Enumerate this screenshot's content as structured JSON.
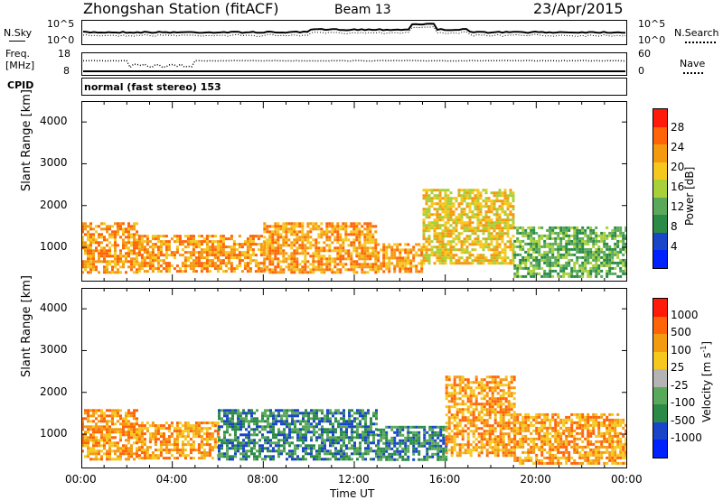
{
  "header": {
    "station": "Zhongshan Station (fitACF)",
    "beam": "Beam 13",
    "date": "23/Apr/2015"
  },
  "noise_panel": {
    "left_label": "N.Sky",
    "left_ticks": [
      "10^5",
      "10^0"
    ],
    "right_ticks": [
      "10^5",
      "10^0"
    ],
    "right_label": "N.Search"
  },
  "freq_panel": {
    "left_label_1": "Freq.",
    "left_label_2": "[MHz]",
    "left_ticks": [
      "18",
      "8"
    ],
    "right_ticks": [
      "60",
      "0"
    ],
    "right_label": "Nave"
  },
  "cpid_panel": {
    "label": "CPID",
    "mode_text": "normal (fast stereo) 153"
  },
  "colors": {
    "power_scale": [
      "#0022ff",
      "#1a45c8",
      "#2a8a46",
      "#5aa85a",
      "#a8d038",
      "#f6c81e",
      "#f49a10",
      "#ff6408",
      "#ff1a0a"
    ],
    "velocity_scale": [
      "#0022ff",
      "#1a45c8",
      "#2a8a46",
      "#5aa85a",
      "#b4b4b4",
      "#f6c81e",
      "#f49a10",
      "#ff6408",
      "#ff1a0a"
    ]
  },
  "chart_data": [
    {
      "type": "heatmap",
      "quantity": "Power",
      "xlabel": "Time UT",
      "ylabel": "Slant Range [km]",
      "x_ticks": [
        "00:00",
        "04:00",
        "08:00",
        "12:00",
        "16:00",
        "20:00",
        "00:00"
      ],
      "xlim_hours": [
        0,
        24
      ],
      "ylim_km": [
        180,
        4500
      ],
      "y_ticks": [
        1000,
        2000,
        3000,
        4000
      ],
      "colorbar_label": "Power [dB]",
      "colorbar_ticks": [
        28,
        24,
        20,
        16,
        12,
        8,
        4
      ],
      "colorbar_range": [
        0,
        30
      ],
      "approx_field": [
        {
          "hours": [
            0.0,
            2.5
          ],
          "range_km": [
            400,
            1600
          ],
          "power_db": 24
        },
        {
          "hours": [
            2.5,
            8.0
          ],
          "range_km": [
            400,
            1300
          ],
          "power_db": 24
        },
        {
          "hours": [
            8.0,
            13.0
          ],
          "range_km": [
            400,
            1600
          ],
          "power_db": 22
        },
        {
          "hours": [
            13.0,
            15.0
          ],
          "range_km": [
            400,
            1100
          ],
          "power_db": 24
        },
        {
          "hours": [
            15.0,
            19.0
          ],
          "range_km": [
            600,
            2400
          ],
          "power_db": 18
        },
        {
          "hours": [
            19.0,
            24.0
          ],
          "range_km": [
            300,
            1500
          ],
          "power_db": 10
        }
      ]
    },
    {
      "type": "heatmap",
      "quantity": "Velocity",
      "xlabel": "Time UT",
      "ylabel": "Slant Range [km]",
      "x_ticks": [
        "00:00",
        "04:00",
        "08:00",
        "12:00",
        "16:00",
        "20:00",
        "00:00"
      ],
      "xlim_hours": [
        0,
        24
      ],
      "ylim_km": [
        180,
        4500
      ],
      "y_ticks": [
        1000,
        2000,
        3000,
        4000
      ],
      "colorbar_label": "Velocity [m s^-1]",
      "colorbar_label_parts": [
        "Velocity [m s",
        "-1",
        "]"
      ],
      "colorbar_ticks": [
        1000,
        500,
        100,
        25,
        -25,
        -100,
        -500,
        -1000
      ],
      "approx_field": [
        {
          "hours": [
            0.0,
            2.5
          ],
          "range_km": [
            400,
            1600
          ],
          "velocity_ms": 100
        },
        {
          "hours": [
            2.5,
            6.0
          ],
          "range_km": [
            400,
            1300
          ],
          "velocity_ms": 100
        },
        {
          "hours": [
            6.0,
            13.0
          ],
          "range_km": [
            400,
            1600
          ],
          "velocity_ms": -300
        },
        {
          "hours": [
            13.0,
            16.0
          ],
          "range_km": [
            400,
            1200
          ],
          "velocity_ms": -200
        },
        {
          "hours": [
            16.0,
            19.0
          ],
          "range_km": [
            500,
            2400
          ],
          "velocity_ms": 100
        },
        {
          "hours": [
            19.0,
            24.0
          ],
          "range_km": [
            300,
            1500
          ],
          "velocity_ms": 150
        }
      ]
    }
  ]
}
